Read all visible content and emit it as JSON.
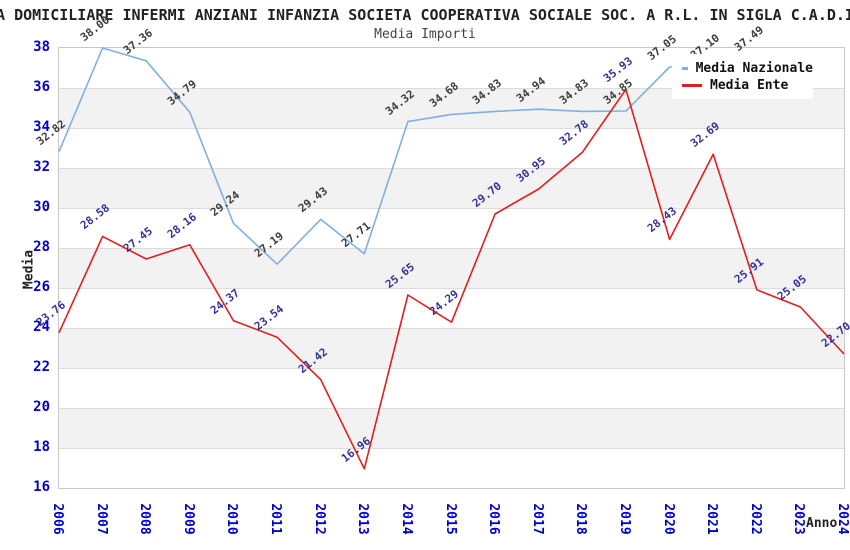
{
  "page": {
    "title_line": "A DOMICILIARE INFERMI ANZIANI INFANZIA SOCIETA COOPERATIVA SOCIALE SOC. A R.L. IN SIGLA C.A.D.I",
    "subtitle": "Media Importi"
  },
  "colors": {
    "tick_label": "#0000cc",
    "national_line": "#7fb0e0",
    "ente_line": "#e01f1f",
    "national_value_label": "#3c3c3c",
    "ente_value_label": "#333399",
    "band_gray": "#f2f2f2",
    "gridline": "#dcdcdc",
    "plot_border": "#c8c8c8"
  },
  "legend": {
    "items": [
      {
        "label": "Media Nazionale",
        "color": "#7fb0e0"
      },
      {
        "label": "Media Ente",
        "color": "#e01f1f"
      }
    ]
  },
  "chart_data": {
    "type": "line",
    "title": "Media Importi",
    "xlabel": "Anno",
    "ylabel": "Media",
    "x_categories": [
      "2006",
      "2007",
      "2008",
      "2009",
      "2010",
      "2011",
      "2012",
      "2013",
      "2014",
      "2015",
      "2016",
      "2017",
      "2018",
      "2019",
      "2020",
      "2021",
      "2022",
      "2023",
      "2024"
    ],
    "ylim": [
      16,
      38
    ],
    "ytick_step": 2,
    "yticks": [
      16,
      18,
      20,
      22,
      24,
      26,
      28,
      30,
      32,
      34,
      36,
      38
    ],
    "grid": "horizontal alternating gray bands every 2 units",
    "legend_position": "top-right",
    "series": [
      {
        "name": "Media Nazionale",
        "color": "#7fb0e0",
        "label_color": "#3c3c3c",
        "values": [
          32.82,
          38.0,
          37.36,
          34.79,
          29.24,
          27.19,
          29.43,
          27.71,
          34.32,
          34.68,
          34.83,
          34.94,
          34.83,
          34.85,
          37.05,
          37.1,
          37.49,
          null,
          null
        ]
      },
      {
        "name": "Media Ente",
        "color": "#e01f1f",
        "label_color": "#333399",
        "values": [
          23.76,
          28.58,
          27.45,
          28.16,
          24.37,
          23.54,
          21.42,
          16.96,
          25.65,
          24.29,
          29.7,
          30.95,
          32.78,
          35.93,
          28.43,
          32.69,
          25.91,
          25.05,
          22.7
        ]
      }
    ]
  }
}
